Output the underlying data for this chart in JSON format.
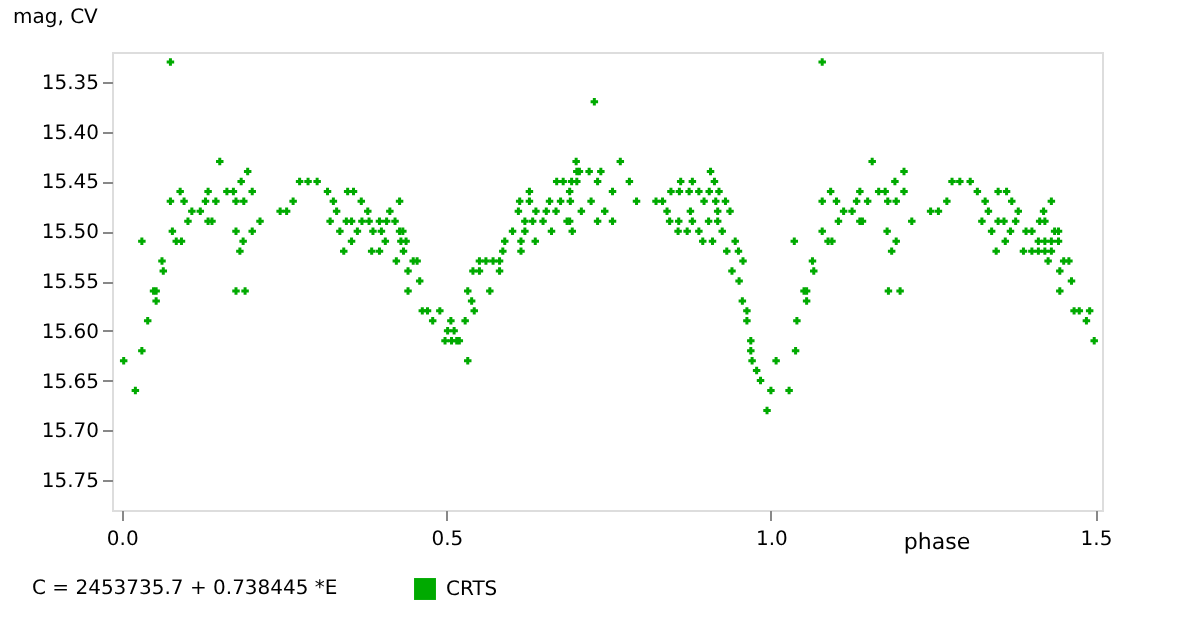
{
  "chart_data": {
    "type": "scatter",
    "ylabel": "mag, CV",
    "xlabel": "phase",
    "annotations": [
      "C = 2453735.7 + 0.738445 *E"
    ],
    "xlim": [
      -0.015,
      1.51
    ],
    "xticks": [
      {
        "value": 0,
        "label": "0.0"
      },
      0.5,
      {
        "value": 1,
        "label": "1.0"
      },
      1.5
    ],
    "ylim": [
      15.78,
      15.32
    ],
    "yticks": [
      15.35,
      {
        "value": 15.4,
        "label": "15.40"
      },
      15.45,
      {
        "value": 15.5,
        "label": "15.50"
      },
      15.55,
      {
        "value": 15.6,
        "label": "15.60"
      },
      15.65,
      {
        "value": 15.7,
        "label": "15.70"
      },
      15.75
    ],
    "grid": false,
    "legend": "bottom",
    "marker": "cross",
    "series": [
      {
        "name": "CRTS",
        "color": "#00aa00",
        "x": [
          0.003,
          0.021,
          0.031,
          0.031,
          0.04,
          0.049,
          0.053,
          0.053,
          0.064,
          0.062,
          0.075,
          0.075,
          0.078,
          0.084,
          0.092,
          0.09,
          0.096,
          0.102,
          0.108,
          0.121,
          0.133,
          0.129,
          0.133,
          0.139,
          0.145,
          0.151,
          0.162,
          0.172,
          0.176,
          0.176,
          0.176,
          0.182,
          0.184,
          0.187,
          0.188,
          0.19,
          0.194,
          0.201,
          0.201,
          0.213,
          0.244,
          0.254,
          0.264,
          0.274,
          0.287,
          0.301,
          0.317,
          0.326,
          0.321,
          0.331,
          0.336,
          0.342,
          0.346,
          0.354,
          0.348,
          0.357,
          0.354,
          0.363,
          0.369,
          0.37,
          0.379,
          0.381,
          0.385,
          0.387,
          0.397,
          0.4,
          0.397,
          0.406,
          0.408,
          0.413,
          0.421,
          0.423,
          0.428,
          0.428,
          0.433,
          0.43,
          0.438,
          0.434,
          0.441,
          0.441,
          0.449,
          0.455,
          0.459,
          0.463,
          0.471,
          0.479,
          0.49,
          0.498,
          0.508,
          0.516,
          0.502,
          0.512,
          0.507,
          0.52,
          0.533,
          0.529,
          0.533,
          0.539,
          0.543,
          0.541,
          0.551,
          0.551,
          0.561,
          0.572,
          0.582,
          0.567,
          0.582,
          0.587,
          0.59,
          0.602,
          0.621,
          0.615,
          0.615,
          0.611,
          0.613,
          0.621,
          0.633,
          0.649,
          0.628,
          0.628,
          0.637,
          0.638,
          0.654,
          0.669,
          0.659,
          0.662,
          0.67,
          0.68,
          0.693,
          0.676,
          0.691,
          0.686,
          0.69,
          0.69,
          0.705,
          0.72,
          0.701,
          0.7,
          0.701,
          0.694,
          0.708,
          0.723,
          0.728,
          0.733,
          0.733,
          0.738,
          0.744,
          0.756,
          0.756,
          0.768,
          0.782,
          0.793,
          0.823,
          0.833,
          0.84,
          0.844,
          0.858,
          0.879,
          0.846,
          0.859,
          0.874,
          0.889,
          0.905,
          0.92,
          0.861,
          0.879,
          0.857,
          0.871,
          0.876,
          0.889,
          0.895,
          0.91,
          0.897,
          0.915,
          0.904,
          0.918,
          0.907,
          0.913,
          0.918,
          0.925,
          0.93,
          0.937,
          0.932,
          0.945,
          0.95,
          0.957,
          0.94,
          0.951,
          0.956,
          0.963,
          0.963,
          0.969,
          0.969,
          0.971,
          0.978,
          0.984,
          0.994,
          1.0,
          1.008,
          1.028,
          1.038,
          1.04,
          1.036,
          1.051,
          1.055,
          1.055,
          1.066,
          1.064,
          1.079,
          1.079,
          1.079,
          1.088,
          1.094,
          1.092,
          1.101,
          1.104,
          1.112,
          1.125,
          1.137,
          1.132,
          1.137,
          1.141,
          1.149,
          1.156,
          1.166,
          1.176,
          1.18,
          1.179,
          1.181,
          1.186,
          1.191,
          1.193,
          1.193,
          1.199,
          1.205,
          1.205,
          1.217,
          1.246,
          1.258,
          1.271,
          1.279,
          1.291,
          1.307,
          1.318,
          1.33,
          1.325,
          1.335,
          1.34,
          1.347,
          1.35,
          1.359,
          1.35,
          1.363,
          1.361,
          1.369,
          1.371,
          1.377,
          1.381,
          1.389,
          1.393,
          1.402,
          1.402,
          1.412,
          1.422,
          1.432,
          1.412,
          1.422,
          1.432,
          1.443,
          1.414,
          1.422,
          1.42,
          1.427,
          1.432,
          1.437,
          1.443,
          1.445,
          1.445,
          1.451,
          1.459,
          1.463,
          1.467,
          1.475,
          1.491,
          1.486,
          1.498
        ],
        "values": [
          15.63,
          15.66,
          15.51,
          15.62,
          15.59,
          15.56,
          15.56,
          15.57,
          15.54,
          15.53,
          15.33,
          15.47,
          15.5,
          15.51,
          15.51,
          15.46,
          15.47,
          15.49,
          15.48,
          15.48,
          15.46,
          15.47,
          15.49,
          15.49,
          15.47,
          15.43,
          15.46,
          15.46,
          15.47,
          15.5,
          15.56,
          15.52,
          15.45,
          15.51,
          15.47,
          15.56,
          15.44,
          15.46,
          15.5,
          15.49,
          15.48,
          15.48,
          15.47,
          15.45,
          15.45,
          15.45,
          15.46,
          15.47,
          15.49,
          15.48,
          15.5,
          15.52,
          15.49,
          15.49,
          15.46,
          15.46,
          15.51,
          15.5,
          15.47,
          15.49,
          15.48,
          15.49,
          15.52,
          15.5,
          15.49,
          15.5,
          15.52,
          15.51,
          15.49,
          15.48,
          15.49,
          15.53,
          15.47,
          15.5,
          15.5,
          15.51,
          15.51,
          15.52,
          15.54,
          15.56,
          15.53,
          15.53,
          15.55,
          15.58,
          15.58,
          15.59,
          15.58,
          15.61,
          15.61,
          15.61,
          15.6,
          15.6,
          15.59,
          15.61,
          15.63,
          15.59,
          15.56,
          15.57,
          15.58,
          15.54,
          15.54,
          15.53,
          15.53,
          15.53,
          15.53,
          15.56,
          15.54,
          15.52,
          15.51,
          15.5,
          15.5,
          15.51,
          15.52,
          15.48,
          15.47,
          15.49,
          15.49,
          15.49,
          15.46,
          15.47,
          15.51,
          15.48,
          15.48,
          15.48,
          15.47,
          15.5,
          15.45,
          15.45,
          15.45,
          15.47,
          15.47,
          15.49,
          15.49,
          15.46,
          15.44,
          15.44,
          15.44,
          15.43,
          15.45,
          15.5,
          15.48,
          15.47,
          15.37,
          15.45,
          15.49,
          15.44,
          15.48,
          15.46,
          15.49,
          15.43,
          15.45,
          15.47,
          15.47,
          15.47,
          15.48,
          15.49,
          15.49,
          15.49,
          15.46,
          15.46,
          15.46,
          15.46,
          15.46,
          15.46,
          15.45,
          15.45,
          15.5,
          15.5,
          15.48,
          15.5,
          15.51,
          15.51,
          15.47,
          15.47,
          15.49,
          15.49,
          15.44,
          15.45,
          15.48,
          15.5,
          15.47,
          15.48,
          15.52,
          15.51,
          15.52,
          15.53,
          15.54,
          15.55,
          15.57,
          15.58,
          15.59,
          15.61,
          15.62,
          15.63,
          15.64,
          15.65,
          15.68,
          15.66,
          15.63,
          15.66,
          15.62,
          15.59,
          15.51,
          15.56,
          15.56,
          15.57,
          15.54,
          15.53,
          15.33,
          15.47,
          15.5,
          15.51,
          15.51,
          15.46,
          15.47,
          15.49,
          15.48,
          15.48,
          15.46,
          15.47,
          15.49,
          15.49,
          15.47,
          15.43,
          15.46,
          15.46,
          15.47,
          15.5,
          15.56,
          15.52,
          15.45,
          15.51,
          15.47,
          15.56,
          15.44,
          15.46,
          15.49,
          15.48,
          15.48,
          15.47,
          15.45,
          15.45,
          15.45,
          15.46,
          15.47,
          15.49,
          15.48,
          15.5,
          15.52,
          15.49,
          15.49,
          15.46,
          15.46,
          15.51,
          15.5,
          15.47,
          15.49,
          15.48,
          15.52,
          15.5,
          15.5,
          15.52,
          15.52,
          15.52,
          15.52,
          15.51,
          15.51,
          15.51,
          15.51,
          15.49,
          15.49,
          15.48,
          15.53,
          15.47,
          15.5,
          15.5,
          15.54,
          15.56,
          15.53,
          15.53,
          15.55,
          15.58,
          15.58,
          15.58,
          15.59,
          15.61
        ]
      }
    ]
  }
}
